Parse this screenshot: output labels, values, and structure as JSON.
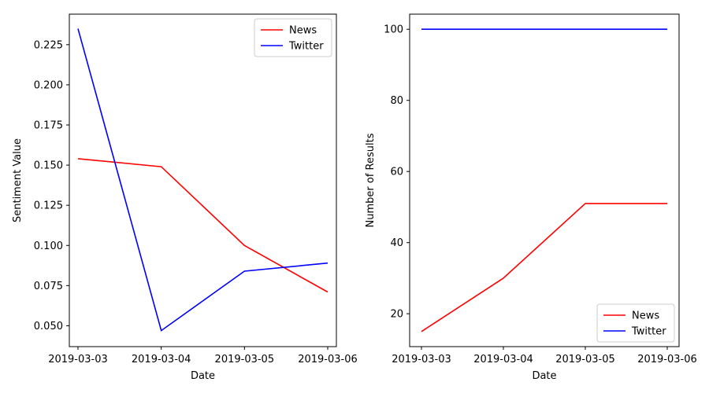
{
  "chart_data": [
    {
      "type": "line",
      "xlabel": "Date",
      "ylabel": "Sentiment Value",
      "x": [
        "2019-03-03",
        "2019-03-04",
        "2019-03-05",
        "2019-03-06"
      ],
      "ylim": [
        0.037,
        0.244
      ],
      "yticks": [
        "0.050",
        "0.075",
        "0.100",
        "0.125",
        "0.150",
        "0.175",
        "0.200",
        "0.225"
      ],
      "ytick_values": [
        0.05,
        0.075,
        0.1,
        0.125,
        0.15,
        0.175,
        0.2,
        0.225
      ],
      "legend_position": "upper right",
      "grid": false,
      "series": [
        {
          "name": "News",
          "color": "#ff0000",
          "values": [
            0.154,
            0.149,
            0.1,
            0.071
          ]
        },
        {
          "name": "Twitter",
          "color": "#0000ff",
          "values": [
            0.235,
            0.047,
            0.084,
            0.089
          ]
        }
      ]
    },
    {
      "type": "line",
      "xlabel": "Date",
      "ylabel": "Number of Results",
      "x": [
        "2019-03-03",
        "2019-03-04",
        "2019-03-05",
        "2019-03-06"
      ],
      "ylim": [
        10.75,
        104.25
      ],
      "yticks": [
        "20",
        "40",
        "60",
        "80",
        "100"
      ],
      "ytick_values": [
        20,
        40,
        60,
        80,
        100
      ],
      "legend_position": "lower right",
      "grid": false,
      "series": [
        {
          "name": "News",
          "color": "#ff0000",
          "values": [
            15,
            30,
            51,
            51
          ]
        },
        {
          "name": "Twitter",
          "color": "#0000ff",
          "values": [
            100,
            100,
            100,
            100
          ]
        }
      ]
    }
  ]
}
